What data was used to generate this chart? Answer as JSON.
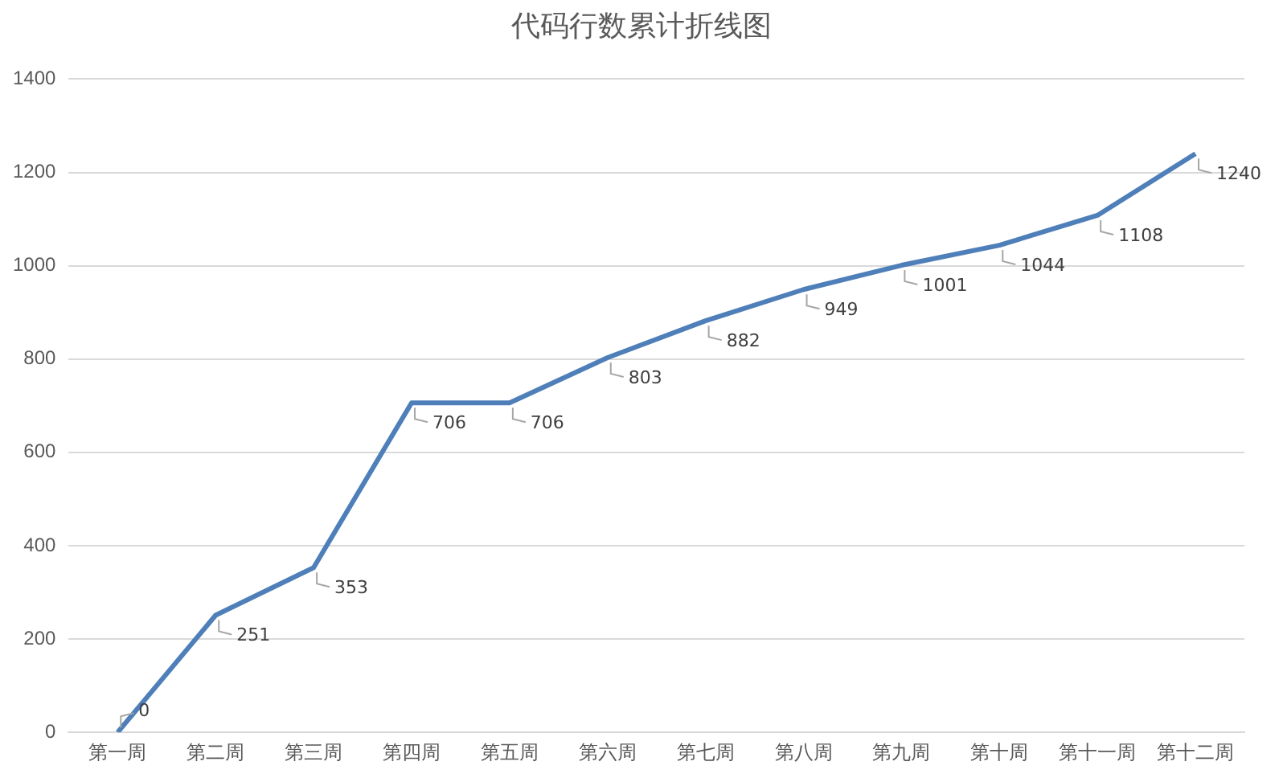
{
  "chart_data": {
    "type": "line",
    "title": "代码行数累计折线图",
    "categories": [
      "第一周",
      "第二周",
      "第三周",
      "第四周",
      "第五周",
      "第六周",
      "第七周",
      "第八周",
      "第九周",
      "第十周",
      "第十一周",
      "第十二周"
    ],
    "series": [
      {
        "color": "#4f7fb9",
        "values": [
          0,
          251,
          353,
          706,
          706,
          803,
          882,
          949,
          1001,
          1044,
          1108,
          1240
        ]
      }
    ],
    "ylim": [
      0,
      1400
    ],
    "yticks": [
      0,
      200,
      400,
      600,
      800,
      1000,
      1200,
      1400
    ],
    "grid": "y",
    "legend": false,
    "marker": "none",
    "line_style": "solid",
    "data_labels": true
  }
}
